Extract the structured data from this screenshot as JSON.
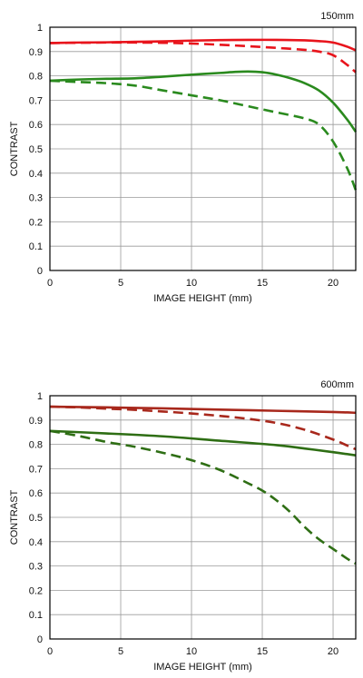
{
  "chart_data": [
    {
      "type": "line",
      "title": "150mm",
      "xlabel": "IMAGE HEIGHT (mm)",
      "ylabel": "CONTRAST",
      "xlim": [
        0,
        21.6
      ],
      "ylim": [
        0,
        1
      ],
      "x_ticks": [
        "0",
        "5",
        "10",
        "15",
        "20"
      ],
      "y_ticks": [
        "0",
        "0.1",
        "0.2",
        "0.3",
        "0.4",
        "0.5",
        "0.6",
        "0.7",
        "0.8",
        "0.9",
        "1"
      ],
      "grid": true,
      "series": [
        {
          "color": "#e8141c",
          "dash": "solid",
          "x": [
            0,
            2,
            4,
            6,
            8,
            10,
            12,
            14,
            16,
            18,
            19,
            20,
            21,
            21.6
          ],
          "y": [
            0.935,
            0.937,
            0.938,
            0.94,
            0.942,
            0.945,
            0.947,
            0.948,
            0.948,
            0.946,
            0.943,
            0.937,
            0.92,
            0.905
          ]
        },
        {
          "color": "#e8141c",
          "dash": "dashed",
          "x": [
            0,
            2,
            4,
            6,
            8,
            10,
            12,
            14,
            16,
            18,
            19,
            20,
            21,
            21.6
          ],
          "y": [
            0.935,
            0.936,
            0.937,
            0.937,
            0.936,
            0.933,
            0.928,
            0.922,
            0.915,
            0.907,
            0.9,
            0.885,
            0.845,
            0.815
          ]
        },
        {
          "color": "#2a8a1e",
          "dash": "solid",
          "x": [
            0,
            2,
            4,
            6,
            8,
            10,
            12,
            13,
            14,
            15,
            16,
            17,
            18,
            19,
            20,
            21,
            21.6
          ],
          "y": [
            0.78,
            0.785,
            0.788,
            0.79,
            0.797,
            0.805,
            0.812,
            0.816,
            0.818,
            0.815,
            0.805,
            0.79,
            0.77,
            0.74,
            0.69,
            0.62,
            0.57
          ]
        },
        {
          "color": "#2a8a1e",
          "dash": "dashed",
          "x": [
            0,
            2,
            4,
            6,
            8,
            10,
            12,
            14,
            16,
            18,
            19,
            20,
            21,
            21.6
          ],
          "y": [
            0.78,
            0.775,
            0.77,
            0.76,
            0.74,
            0.72,
            0.7,
            0.675,
            0.65,
            0.625,
            0.6,
            0.53,
            0.42,
            0.33
          ]
        }
      ]
    },
    {
      "type": "line",
      "title": "600mm",
      "xlabel": "IMAGE HEIGHT (mm)",
      "ylabel": "CONTRAST",
      "xlim": [
        0,
        21.6
      ],
      "ylim": [
        0,
        1
      ],
      "x_ticks": [
        "0",
        "5",
        "10",
        "15",
        "20"
      ],
      "y_ticks": [
        "0",
        "0.1",
        "0.2",
        "0.3",
        "0.4",
        "0.5",
        "0.6",
        "0.7",
        "0.8",
        "0.9",
        "1"
      ],
      "grid": true,
      "series": [
        {
          "color": "#a8281c",
          "dash": "solid",
          "x": [
            0,
            4,
            8,
            12,
            16,
            20,
            21.6
          ],
          "y": [
            0.955,
            0.952,
            0.948,
            0.943,
            0.938,
            0.933,
            0.93
          ]
        },
        {
          "color": "#a8281c",
          "dash": "dashed",
          "x": [
            0,
            2,
            4,
            6,
            8,
            10,
            12,
            14,
            16,
            18,
            20,
            21,
            21.6
          ],
          "y": [
            0.955,
            0.952,
            0.947,
            0.942,
            0.935,
            0.927,
            0.917,
            0.905,
            0.888,
            0.86,
            0.82,
            0.795,
            0.78
          ]
        },
        {
          "color": "#2e6e14",
          "dash": "solid",
          "x": [
            0,
            4,
            8,
            12,
            16,
            18,
            20,
            21.6
          ],
          "y": [
            0.855,
            0.845,
            0.833,
            0.815,
            0.797,
            0.783,
            0.768,
            0.755
          ]
        },
        {
          "color": "#2e6e14",
          "dash": "dashed",
          "x": [
            0,
            2,
            4,
            6,
            8,
            10,
            12,
            14,
            15,
            16,
            17,
            18,
            19,
            20,
            21,
            21.6
          ],
          "y": [
            0.855,
            0.835,
            0.81,
            0.79,
            0.765,
            0.735,
            0.695,
            0.64,
            0.61,
            0.57,
            0.52,
            0.46,
            0.41,
            0.37,
            0.33,
            0.31
          ]
        }
      ]
    }
  ]
}
